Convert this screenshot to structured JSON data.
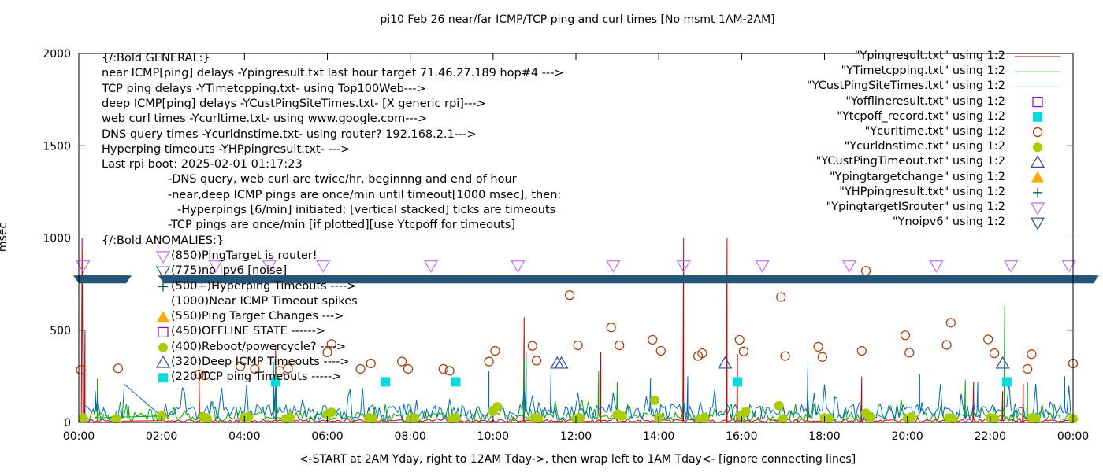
{
  "chart_data": {
    "type": "line",
    "title": "pi10 Feb 26  near/far ICMP/TCP ping and curl times [No msmt 1AM-2AM]",
    "xlabel": "<-START at 2AM Yday, right to 12AM Tday->, then wrap left to 1AM Tday<- [ignore connecting lines]",
    "ylabel": "msec",
    "xlim": [
      0,
      24
    ],
    "ylim": [
      0,
      2000
    ],
    "x_ticks": [
      "00:00",
      "02:00",
      "04:00",
      "06:00",
      "08:00",
      "10:00",
      "12:00",
      "14:00",
      "16:00",
      "18:00",
      "20:00",
      "22:00",
      "00:00"
    ],
    "y_ticks": [
      "0",
      "500",
      "1000",
      "1500",
      "2000"
    ],
    "grid": false,
    "legend_position": "top-right",
    "series": [
      {
        "name": "\"Ypingresult.txt\" using 1:2",
        "style": "line",
        "color": "#cc0000",
        "spikes": [
          [
            0.08,
            1000
          ],
          [
            0.15,
            500
          ],
          [
            0.45,
            230
          ],
          [
            2.9,
            310
          ],
          [
            4.75,
            420
          ],
          [
            10.75,
            570
          ],
          [
            12.6,
            380
          ],
          [
            14.6,
            1000
          ],
          [
            15.65,
            1000
          ],
          [
            15.9,
            370
          ],
          [
            17.6,
            290
          ],
          [
            18.9,
            250
          ],
          [
            21.6,
            220
          ],
          [
            22.3,
            170
          ],
          [
            22.8,
            210
          ]
        ],
        "baseline": 8
      },
      {
        "name": "\"YTimetcpping.txt\" using 1:2",
        "style": "line",
        "color": "#00aa00",
        "spikes": [
          [
            0.45,
            240
          ],
          [
            1.2,
            40
          ],
          [
            2.0,
            30
          ],
          [
            4.75,
            340
          ],
          [
            10.75,
            340
          ],
          [
            12.55,
            280
          ],
          [
            13.0,
            220
          ],
          [
            17.6,
            300
          ],
          [
            21.4,
            230
          ],
          [
            22.35,
            630
          ],
          [
            22.9,
            220
          ]
        ],
        "baseline": 30
      },
      {
        "name": "\"YCustPingSiteTimes.txt\" using 1:2",
        "style": "line",
        "color": "#0066cc",
        "spikes": [
          [
            0.4,
            170
          ],
          [
            4.7,
            330
          ],
          [
            9.9,
            280
          ],
          [
            10.8,
            380
          ],
          [
            11.4,
            300
          ],
          [
            13.8,
            240
          ],
          [
            14.7,
            250
          ],
          [
            17.6,
            320
          ],
          [
            20.3,
            260
          ],
          [
            21.7,
            220
          ],
          [
            23.8,
            250
          ]
        ],
        "baseline": 55
      },
      {
        "name": "\"Yofflineresult.txt\" using 1:2",
        "style": "open-square",
        "color": "#9900cc",
        "x": [],
        "y": []
      },
      {
        "name": "\"Ytcpoff_record.txt\" using 1:2",
        "style": "filled-square",
        "color": "#00dddd",
        "x": [
          4.75,
          7.4,
          9.1,
          15.9,
          22.4
        ],
        "y": [
          220,
          220,
          220,
          220,
          220
        ]
      },
      {
        "name": "\"Ycurltime.txt\" using 1:2",
        "style": "open-circle",
        "color": "#aa3300",
        "x": [
          0.05,
          0.95,
          2.9,
          3.05,
          3.9,
          4.25,
          4.85,
          5.05,
          6.0,
          6.1,
          6.8,
          7.05,
          7.8,
          7.95,
          8.8,
          8.95,
          9.9,
          10.05,
          10.95,
          11.05,
          11.85,
          12.05,
          12.85,
          13.05,
          13.85,
          14.05,
          14.95,
          15.05,
          15.95,
          16.05,
          16.95,
          17.05,
          17.85,
          17.95,
          18.9,
          19.0,
          19.95,
          20.05,
          20.95,
          21.05,
          21.95,
          22.1,
          22.9,
          23.0,
          24.0
        ],
        "y": [
          285,
          293,
          260,
          255,
          305,
          290,
          280,
          292,
          380,
          425,
          290,
          320,
          330,
          290,
          290,
          280,
          330,
          388,
          415,
          335,
          690,
          418,
          515,
          418,
          448,
          388,
          360,
          375,
          448,
          385,
          680,
          360,
          410,
          355,
          388,
          822,
          472,
          378,
          420,
          540,
          450,
          375,
          290,
          370,
          320
        ]
      },
      {
        "name": "\"Ycurldnstime.txt\" using 1:2",
        "style": "filled-circle",
        "color": "#aacc00",
        "x": [
          0.1,
          0.9,
          2.0,
          3.0,
          3.1,
          4.0,
          4.1,
          5.0,
          5.1,
          6.0,
          6.1,
          7.0,
          7.1,
          8.0,
          8.1,
          9.0,
          9.1,
          10.0,
          10.1,
          11.0,
          11.1,
          12.0,
          12.1,
          13.0,
          13.1,
          13.9,
          14.0,
          15.0,
          15.1,
          16.0,
          16.1,
          16.9,
          17.0,
          18.0,
          18.1,
          19.0,
          19.1,
          20.0,
          20.1,
          21.0,
          21.1,
          22.0,
          22.1,
          23.0,
          23.1,
          24.0
        ],
        "y": [
          25,
          20,
          35,
          30,
          20,
          25,
          30,
          20,
          25,
          45,
          55,
          25,
          20,
          20,
          25,
          20,
          25,
          60,
          85,
          25,
          20,
          20,
          25,
          45,
          35,
          120,
          25,
          20,
          25,
          40,
          60,
          90,
          20,
          25,
          20,
          50,
          25,
          20,
          30,
          25,
          20,
          25,
          20,
          25,
          20,
          20
        ]
      },
      {
        "name": "\"YCustPingTimeout.txt\" using 1:2",
        "style": "open-triangle-up",
        "color": "#3344bb",
        "x": [
          11.55,
          11.65,
          15.6,
          22.3
        ],
        "y": [
          320,
          320,
          320,
          320
        ]
      },
      {
        "name": "\"Ypingtargetchange\" using 1:2",
        "style": "filled-triangle-up",
        "color": "#ffaa00",
        "x": [],
        "y": []
      },
      {
        "name": "\"YHPpingresult.txt\" using 1:2",
        "style": "plus",
        "color": "#006633",
        "x": [],
        "y": []
      },
      {
        "name": "\"YpingtargetISrouter\" using 1:2",
        "style": "open-triangle-down",
        "color": "#cc66ff",
        "x": [
          0.1,
          3.3,
          4.6,
          5.9,
          8.5,
          10.6,
          12.9,
          14.6,
          16.5,
          18.6,
          20.7,
          22.5,
          23.9
        ],
        "y": [
          850,
          850,
          850,
          850,
          850,
          850,
          850,
          850,
          850,
          850,
          850,
          850,
          850
        ]
      },
      {
        "name": "\"Ynoipv6\" using 1:2",
        "style": "filled-triangle-down",
        "color": "#225577",
        "x_start": [
          0,
          2.05
        ],
        "x_end": [
          1.15,
          24.5
        ],
        "y": 775
      }
    ],
    "annotations": [
      "{/:Bold GENERAL:}",
      "near ICMP[ping] delays -Ypingresult.txt last hour target 71.46.27.189 hop#4 --->",
      "TCP ping delays -YTimetcpping.txt- using Top100Web--->",
      "deep ICMP[ping] delays -YCustPingSiteTimes.txt- [X generic rpi]--->",
      "web curl times -Ycurltime.txt- using www.google.com--->",
      "DNS query times -Ycurldnstime.txt- using router? 192.168.2.1--->",
      "Hyperping timeouts -YHPpingresult.txt- --->",
      "Last rpi boot: 2025-02-01 01:17:23",
      "-DNS query, web curl are twice/hr, beginnng and end of hour",
      "-near,deep ICMP pings are once/min until timeout[1000 msec], then:",
      "-Hyperpings [6/min] initiated; [vertical stacked] ticks are timeouts",
      "-TCP pings are once/min [if plotted][use Ytcpoff for timeouts]",
      "{/:Bold ANOMALIES:}",
      "(850)PingTarget is router!",
      "(775)no ipv6 [noise]",
      "(500+)Hyperping Timeouts ---->",
      "(1000)Near ICMP Timeout spikes",
      "(550)Ping Target Changes --->",
      "(450)OFFLINE STATE ------>",
      "(400)Reboot/powercycle? ---->",
      "(320)Deep ICMP Timeouts ---->",
      "(220)TCP ping Timeouts ----->"
    ]
  }
}
